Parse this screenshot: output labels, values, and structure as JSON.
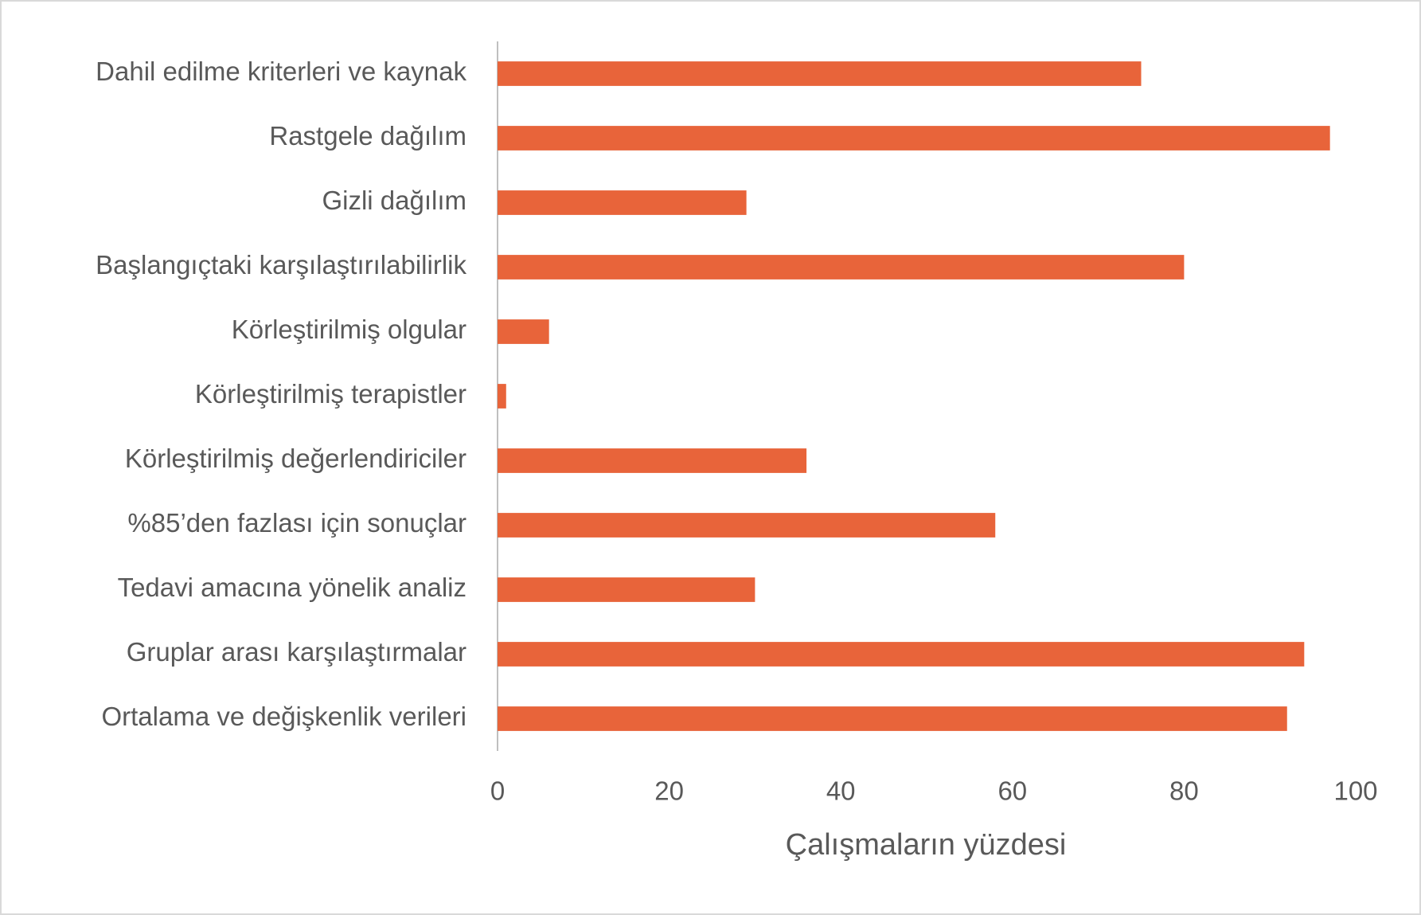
{
  "chart_data": {
    "type": "bar",
    "orientation": "horizontal",
    "categories": [
      "Dahil edilme kriterleri ve kaynak",
      "Rastgele dağılım",
      "Gizli dağılım",
      "Başlangıçtaki karşılaştırılabilirlik",
      "Körleştirilmiş olgular",
      "Körleştirilmiş terapistler",
      "Körleştirilmiş değerlendiriciler",
      "%85’den fazlası için sonuçlar",
      "Tedavi amacına yönelik analiz",
      "Gruplar arası karşılaştırmalar",
      "Ortalama ve değişkenlik verileri"
    ],
    "values": [
      75,
      97,
      29,
      80,
      6,
      1,
      36,
      58,
      30,
      94,
      92
    ],
    "color": "#e8643a",
    "x_label": "Çalışmaların yüzdesi",
    "xlim": [
      0,
      100
    ],
    "xticks": [
      0,
      20,
      40,
      60,
      80,
      100
    ],
    "grid": false
  }
}
